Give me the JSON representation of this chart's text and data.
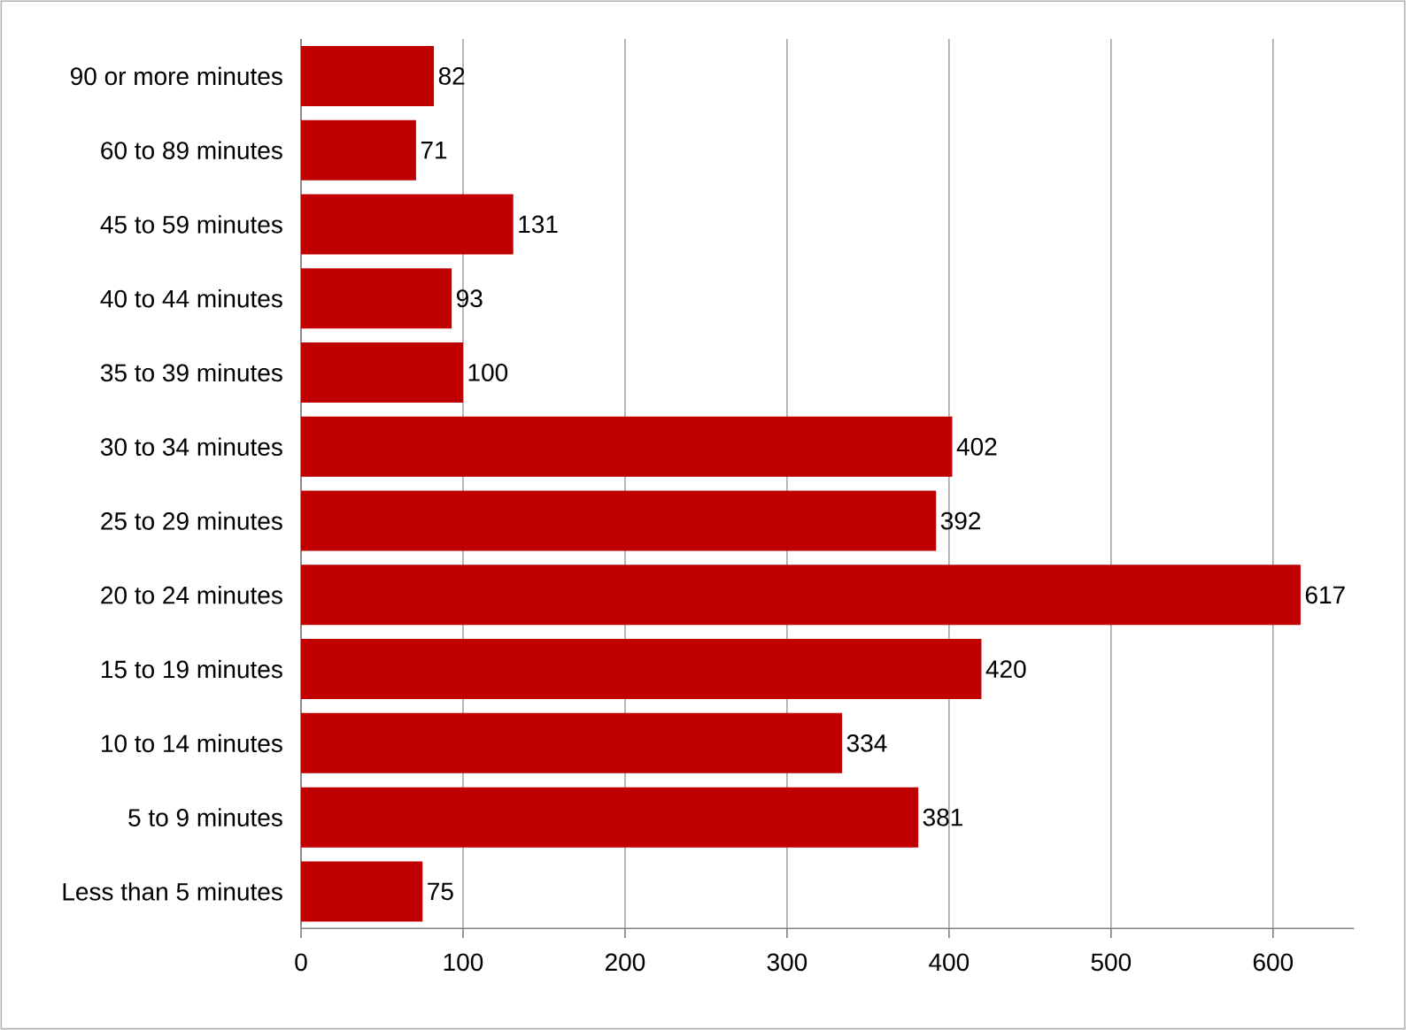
{
  "chart_data": {
    "type": "bar",
    "orientation": "horizontal",
    "categories": [
      "90 or more minutes",
      "60 to 89 minutes",
      "45 to 59 minutes",
      "40 to 44 minutes",
      "35 to 39 minutes",
      "30 to 34 minutes",
      "25 to 29 minutes",
      "20 to 24 minutes",
      "15 to 19 minutes",
      "10 to 14 minutes",
      "5 to 9 minutes",
      "Less than 5 minutes"
    ],
    "values": [
      82,
      71,
      131,
      93,
      100,
      402,
      392,
      617,
      420,
      334,
      381,
      75
    ],
    "color": "#c00000",
    "xlim": [
      0,
      650
    ],
    "xticks": [
      0,
      100,
      200,
      300,
      400,
      500,
      600
    ],
    "grid": "x",
    "data_labels": true
  }
}
